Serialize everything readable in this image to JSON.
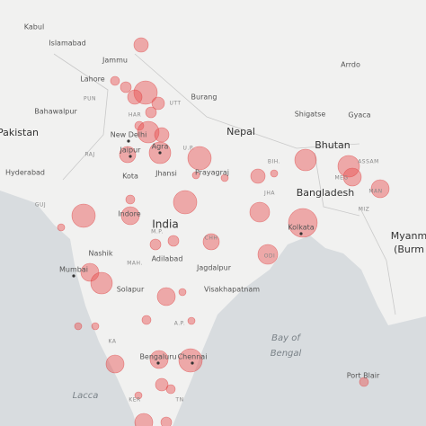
{
  "labels": {
    "countries": [
      "Pakistan",
      "Nepal",
      "Bhutan",
      "Bangladesh",
      "India",
      "Myanm",
      "(Burm"
    ],
    "cities": [
      "Kabul",
      "Islamabad",
      "Jammu",
      "Lahore",
      "Bahawalpur",
      "Hyderabad",
      "New Delhi",
      "Jaipur",
      "Agra",
      "Kota",
      "Jhansi",
      "Prayagraj",
      "Burang",
      "Shigatse",
      "Gyaca",
      "Arrdo",
      "Kolkata",
      "Indore",
      "Nashik",
      "Mumbai",
      "Adilabad",
      "Jagdalpur",
      "Visakhapatnam",
      "Solapur",
      "Bengaluru",
      "Chennai",
      "Port Blair"
    ],
    "states": [
      "PUN",
      "HAR",
      "RAJ",
      "GUJ",
      "M.P.",
      "MAH.",
      "U.P.",
      "BIH.",
      "ODI",
      "A.P.",
      "KA",
      "KER",
      "TN",
      "ASSAM",
      "MEG",
      "MIZ",
      "MAN",
      "UTT",
      "CHH",
      "JHA"
    ],
    "seas": [
      "Bay of",
      "Bengal",
      "Lacca"
    ]
  }
}
